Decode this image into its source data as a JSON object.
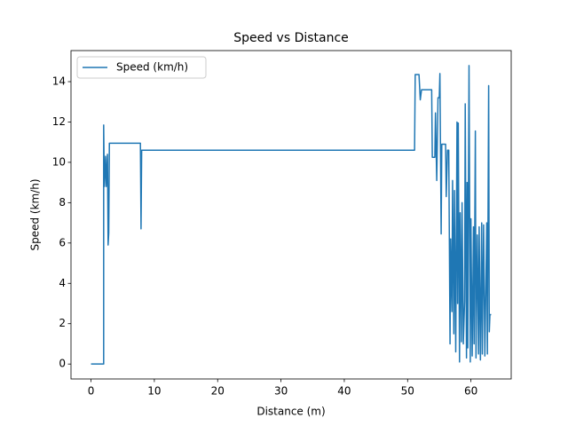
{
  "chart_data": {
    "type": "line",
    "title": "Speed vs Distance",
    "xlabel": "Distance (m)",
    "ylabel": "Speed (km/h)",
    "xlim": [
      -3.16,
      66.36
    ],
    "ylim": [
      -0.74,
      15.54
    ],
    "xticks": [
      0,
      10,
      20,
      30,
      40,
      50,
      60
    ],
    "yticks": [
      0,
      2,
      4,
      6,
      8,
      10,
      12,
      14
    ],
    "legend": "upper left",
    "series": [
      {
        "name": "Speed (km/h)",
        "color": "#1f77b4",
        "x": [
          0,
          2,
          2.0,
          2.1,
          2.3,
          2.4,
          2.6,
          2.7,
          2.8,
          2.9,
          7.8,
          7.9,
          8.0,
          51.1,
          51.2,
          51.8,
          52.0,
          52.2,
          53.8,
          53.9,
          54.3,
          54.4,
          54.6,
          54.8,
          55.0,
          55.1,
          55.3,
          55.4,
          56.0,
          56.1,
          56.3,
          56.5,
          56.7,
          56.8,
          57.0,
          57.1,
          57.3,
          57.4,
          57.6,
          57.8,
          57.9,
          58.0,
          58.2,
          58.3,
          58.5,
          58.6,
          58.8,
          59.0,
          59.1,
          59.3,
          59.4,
          59.5,
          59.7,
          59.9,
          60.0,
          60.2,
          60.4,
          60.5,
          60.7,
          60.8,
          61.0,
          61.2,
          61.3,
          61.5,
          61.7,
          61.8,
          62.0,
          62.2,
          62.5,
          62.6,
          62.8,
          62.9,
          63.0,
          63.2
        ],
        "y": [
          0,
          0,
          11.85,
          8.8,
          10.3,
          8.8,
          10.4,
          5.9,
          6.5,
          10.95,
          10.95,
          6.7,
          10.6,
          10.6,
          14.35,
          14.35,
          13.1,
          13.6,
          13.6,
          10.25,
          10.25,
          12.45,
          9.1,
          13.2,
          13.2,
          14.4,
          6.45,
          10.9,
          10.9,
          8.3,
          10.6,
          10.6,
          1.0,
          6.2,
          2.6,
          9.1,
          1.5,
          8.6,
          0.6,
          12.0,
          3.0,
          11.95,
          0.1,
          7.5,
          1.1,
          8.0,
          1.0,
          3.1,
          12.9,
          0.3,
          9.0,
          0.8,
          14.8,
          0.1,
          7.2,
          0.4,
          6.8,
          1.0,
          11.55,
          0.3,
          6.4,
          0.5,
          6.8,
          0.2,
          7.0,
          0.5,
          6.9,
          0.4,
          7.0,
          0.5,
          13.8,
          1.6,
          2.45,
          2.45
        ]
      }
    ]
  }
}
